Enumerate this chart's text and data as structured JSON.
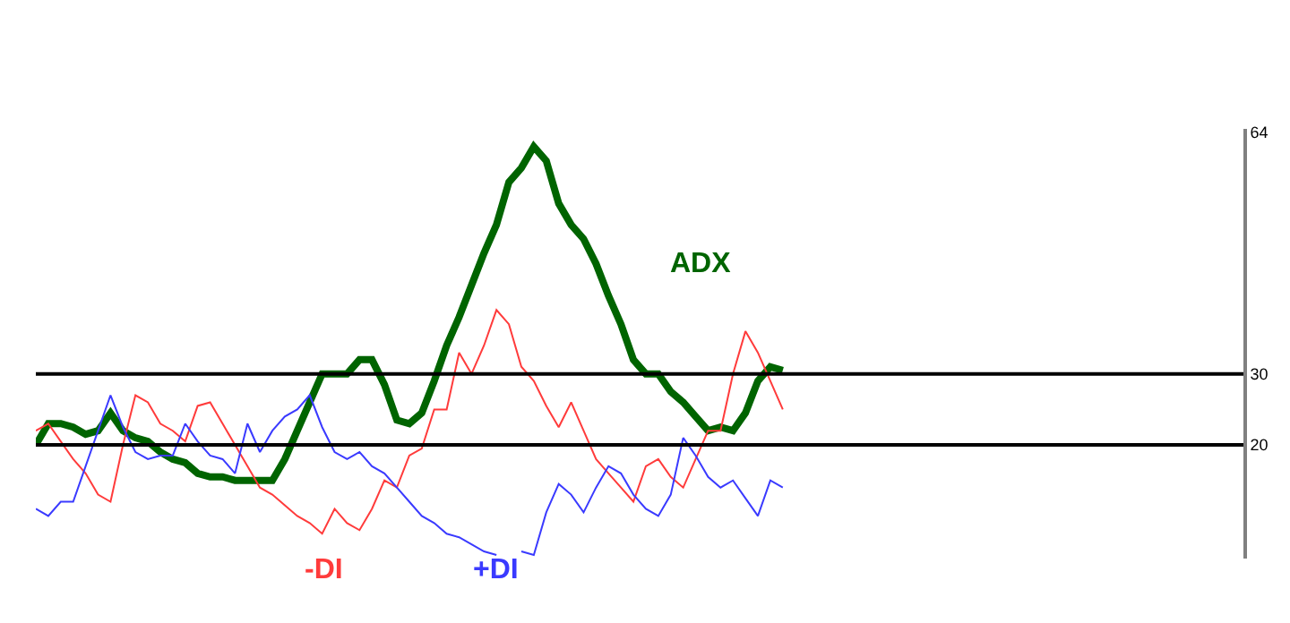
{
  "chart_data": {
    "type": "line",
    "categories": [
      null,
      null,
      null,
      null,
      null,
      null,
      null,
      null,
      null,
      null,
      null,
      null,
      null,
      null,
      null,
      null,
      null,
      null,
      null,
      null,
      null,
      null,
      null,
      null,
      null,
      null,
      null,
      null,
      null,
      null,
      null,
      null,
      null,
      null,
      null,
      null,
      null,
      null,
      null,
      null,
      null,
      null,
      null,
      null,
      null,
      null,
      null,
      null,
      null,
      null,
      null,
      null,
      null,
      null,
      null,
      null,
      null,
      null,
      null,
      null,
      null,
      null,
      null,
      null,
      null,
      null,
      null,
      null,
      null,
      null,
      null,
      null,
      null,
      null,
      null,
      null,
      null,
      null,
      null,
      null,
      null,
      null,
      null,
      null,
      null,
      null,
      null,
      null,
      null,
      null,
      null,
      null,
      null,
      null,
      null,
      null,
      null,
      null
    ],
    "series": [
      {
        "name": "ADX",
        "color": "#006400",
        "values": [
          20,
          23,
          23,
          22.5,
          21.5,
          22,
          24.5,
          22,
          21,
          20.5,
          19,
          18,
          17.5,
          16,
          15.5,
          15.5,
          15,
          15,
          15,
          15,
          18,
          22,
          26,
          30,
          30,
          30,
          32,
          32,
          28.5,
          23.5,
          23,
          24.5,
          29,
          34,
          38,
          42.5,
          47,
          51,
          57,
          59,
          62,
          60,
          54,
          51,
          49,
          45.5,
          41,
          37,
          32,
          30,
          30,
          27.5,
          26,
          24,
          22,
          22.5,
          22,
          24.5,
          29,
          31,
          30.5,
          null,
          null,
          null,
          null,
          null,
          null,
          null,
          null,
          null,
          null,
          null,
          null,
          null,
          null,
          null,
          null,
          null,
          null,
          null,
          null,
          null,
          null,
          null,
          null,
          null,
          null,
          null,
          null,
          null,
          null,
          null,
          null,
          null,
          null,
          null,
          null,
          null
        ]
      },
      {
        "name": "-DI",
        "color": "#ff3b3b",
        "values": [
          22,
          23,
          20.5,
          18,
          16,
          13,
          12,
          20,
          27,
          26,
          23,
          22,
          20.5,
          25.5,
          26,
          23,
          20,
          17,
          14,
          13,
          11.5,
          10,
          9,
          7.5,
          11,
          9,
          8,
          11,
          15,
          14,
          18.5,
          19.5,
          25,
          25,
          33,
          30,
          34,
          39,
          37,
          31,
          29,
          25.5,
          22.5,
          26,
          22,
          18,
          16,
          14,
          12,
          17,
          18,
          15.5,
          14,
          18,
          22,
          22,
          30,
          36,
          33,
          29,
          25,
          null,
          null,
          null,
          null,
          null,
          null,
          null,
          null,
          null,
          null,
          null,
          null,
          null,
          null,
          null,
          null,
          null,
          null,
          null,
          null,
          null,
          null,
          null,
          null,
          null,
          null,
          null,
          null,
          null,
          null,
          null,
          null,
          null,
          null,
          null,
          null,
          null
        ]
      },
      {
        "name": "+DI",
        "color": "#3a3aff",
        "values": [
          11,
          10,
          12,
          12,
          17,
          22,
          27,
          22.5,
          19,
          18,
          18.5,
          18.5,
          23,
          20.5,
          18.5,
          18,
          16,
          23,
          19,
          22,
          24,
          25,
          27,
          22.5,
          19,
          18,
          19,
          17,
          16,
          14,
          12,
          10,
          9,
          7.5,
          7,
          6,
          5,
          4.5,
          null,
          5,
          4.5,
          10.5,
          14.5,
          13,
          10.5,
          14,
          17,
          16,
          13,
          11,
          10,
          13,
          21,
          18.5,
          15.5,
          14,
          15,
          12.5,
          10,
          15,
          14,
          null,
          null,
          null,
          null,
          null,
          null,
          null,
          null,
          null,
          null,
          null,
          null,
          null,
          null,
          null,
          null,
          null,
          null,
          null,
          null,
          null,
          null,
          null,
          null,
          null,
          null,
          null,
          null,
          null,
          null,
          null,
          null,
          null,
          null,
          null,
          null,
          null
        ]
      }
    ],
    "ylim": [
      4,
      64.5
    ],
    "yticks": [
      20,
      30,
      64
    ],
    "ref_lines": [
      {
        "axis": "y",
        "value": 30,
        "color": "#000000"
      },
      {
        "axis": "y",
        "value": 20,
        "color": "#000000"
      }
    ],
    "tick_labels": "y",
    "legend": false,
    "marker": "none",
    "line_style": "solid"
  }
}
